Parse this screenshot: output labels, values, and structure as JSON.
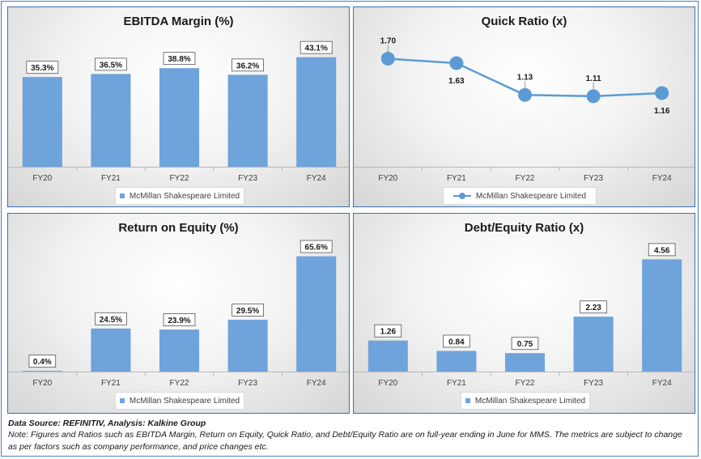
{
  "chart_data": [
    {
      "id": "ebitda",
      "type": "bar",
      "title": "EBITDA Margin (%)",
      "categories": [
        "FY20",
        "FY21",
        "FY22",
        "FY23",
        "FY24"
      ],
      "series": [
        {
          "name": "McMillan Shakespeare Limited",
          "values": [
            35.3,
            36.5,
            38.8,
            36.2,
            43.1
          ]
        }
      ],
      "labels": [
        "35.3%",
        "36.5%",
        "38.8%",
        "36.2%",
        "43.1%"
      ],
      "ylim": [
        0,
        50
      ],
      "legend": "bottom"
    },
    {
      "id": "quick",
      "type": "line",
      "title": "Quick Ratio (x)",
      "categories": [
        "FY20",
        "FY21",
        "FY22",
        "FY23",
        "FY24"
      ],
      "series": [
        {
          "name": "McMillan Shakespeare Limited",
          "values": [
            1.7,
            1.63,
            1.13,
            1.11,
            1.16
          ]
        }
      ],
      "labels": [
        "1.70",
        "1.63",
        "1.13",
        "1.11",
        "1.16"
      ],
      "ylim": [
        0,
        2.0
      ],
      "legend": "bottom"
    },
    {
      "id": "roe",
      "type": "bar",
      "title": "Return on Equity (%)",
      "categories": [
        "FY20",
        "FY21",
        "FY22",
        "FY23",
        "FY24"
      ],
      "series": [
        {
          "name": "McMillan Shakespeare Limited",
          "values": [
            0.4,
            24.5,
            23.9,
            29.5,
            65.6
          ]
        }
      ],
      "labels": [
        "0.4%",
        "24.5%",
        "23.9%",
        "29.5%",
        "65.6%"
      ],
      "ylim": [
        0,
        70
      ],
      "legend": "bottom"
    },
    {
      "id": "de",
      "type": "bar",
      "title": "Debt/Equity Ratio (x)",
      "categories": [
        "FY20",
        "FY21",
        "FY22",
        "FY23",
        "FY24"
      ],
      "series": [
        {
          "name": "McMillan Shakespeare Limited",
          "values": [
            1.26,
            0.84,
            0.75,
            2.23,
            4.56
          ]
        }
      ],
      "labels": [
        "1.26",
        "0.84",
        "0.75",
        "2.23",
        "4.56"
      ],
      "ylim": [
        0,
        5
      ],
      "legend": "bottom"
    }
  ],
  "colors": {
    "series": "#6fa3db",
    "line": "#5b9bd5",
    "panel_border": "#3a6fb0"
  },
  "footer": {
    "source": "Data Source: REFINITIV, Analysis: Kalkine Group",
    "note": "Note: Figures and Ratios such as EBITDA  Margin, Return on Equity, Quick Ratio, and Debt/Equity Ratio are on full-year ending in June for MMS. The metrics are subject to change as per factors such as company performance, and price changes etc."
  }
}
